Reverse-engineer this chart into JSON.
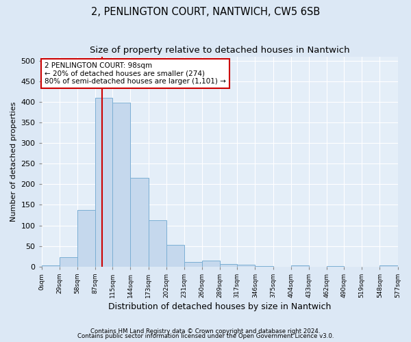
{
  "title": "2, PENLINGTON COURT, NANTWICH, CW5 6SB",
  "subtitle": "Size of property relative to detached houses in Nantwich",
  "xlabel": "Distribution of detached houses by size in Nantwich",
  "ylabel": "Number of detached properties",
  "bin_edges": [
    0,
    29,
    58,
    87,
    115,
    144,
    173,
    202,
    231,
    260,
    289,
    317,
    346,
    375,
    404,
    433,
    462,
    490,
    519,
    548,
    577
  ],
  "bar_heights": [
    3,
    22,
    137,
    410,
    398,
    215,
    113,
    52,
    11,
    14,
    6,
    5,
    1,
    0,
    2,
    0,
    1,
    0,
    0,
    2
  ],
  "bar_color": "#c5d8ed",
  "bar_edge_color": "#7bafd4",
  "property_line_x": 98,
  "property_line_color": "#cc0000",
  "annotation_text": "2 PENLINGTON COURT: 98sqm\n← 20% of detached houses are smaller (274)\n80% of semi-detached houses are larger (1,101) →",
  "annotation_box_color": "#ffffff",
  "annotation_box_edge_color": "#cc0000",
  "footer_line1": "Contains HM Land Registry data © Crown copyright and database right 2024.",
  "footer_line2": "Contains public sector information licensed under the Open Government Licence v3.0.",
  "tick_labels": [
    "0sqm",
    "29sqm",
    "58sqm",
    "87sqm",
    "115sqm",
    "144sqm",
    "173sqm",
    "202sqm",
    "231sqm",
    "260sqm",
    "289sqm",
    "317sqm",
    "346sqm",
    "375sqm",
    "404sqm",
    "433sqm",
    "462sqm",
    "490sqm",
    "519sqm",
    "548sqm",
    "577sqm"
  ],
  "ylim": [
    0,
    510
  ],
  "yticks": [
    0,
    50,
    100,
    150,
    200,
    250,
    300,
    350,
    400,
    450,
    500
  ],
  "background_color": "#dce8f5",
  "plot_background_color": "#e4eef8",
  "grid_color": "#ffffff",
  "title_fontsize": 10.5,
  "subtitle_fontsize": 9.5,
  "xlabel_fontsize": 9,
  "ylabel_fontsize": 8
}
